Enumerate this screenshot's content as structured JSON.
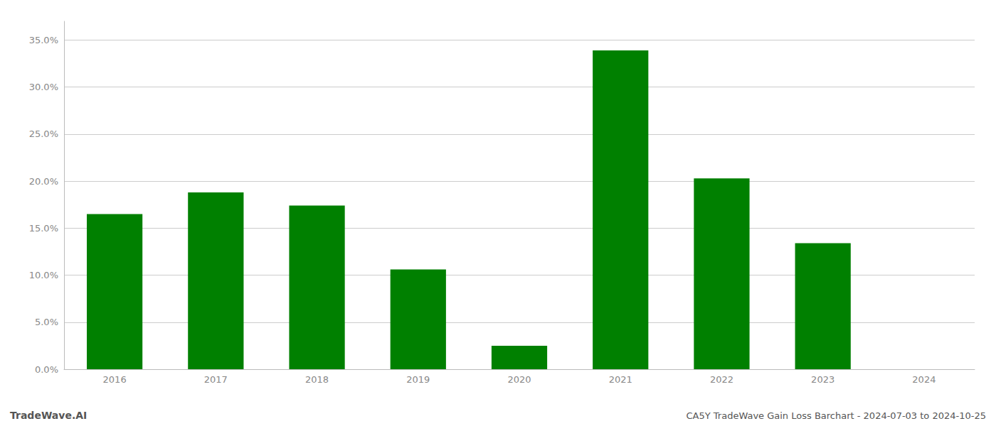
{
  "chart_data": {
    "type": "bar",
    "categories": [
      "2016",
      "2017",
      "2018",
      "2019",
      "2020",
      "2021",
      "2022",
      "2023",
      "2024"
    ],
    "values": [
      0.165,
      0.188,
      0.174,
      0.106,
      0.025,
      0.339,
      0.203,
      0.134,
      0.0
    ],
    "color": "#008000",
    "ylim": [
      0,
      0.37
    ],
    "yticks": [
      {
        "value": 0.0,
        "label": "0.0%"
      },
      {
        "value": 0.05,
        "label": "5.0%"
      },
      {
        "value": 0.1,
        "label": "10.0%"
      },
      {
        "value": 0.15,
        "label": "15.0%"
      },
      {
        "value": 0.2,
        "label": "20.0%"
      },
      {
        "value": 0.25,
        "label": "25.0%"
      },
      {
        "value": 0.3,
        "label": "30.0%"
      },
      {
        "value": 0.35,
        "label": "35.0%"
      }
    ],
    "grid": true,
    "annotations": [
      "TradeWave.AI",
      "CA5Y TradeWave Gain Loss Barchart - 2024-07-03 to 2024-10-25"
    ]
  }
}
